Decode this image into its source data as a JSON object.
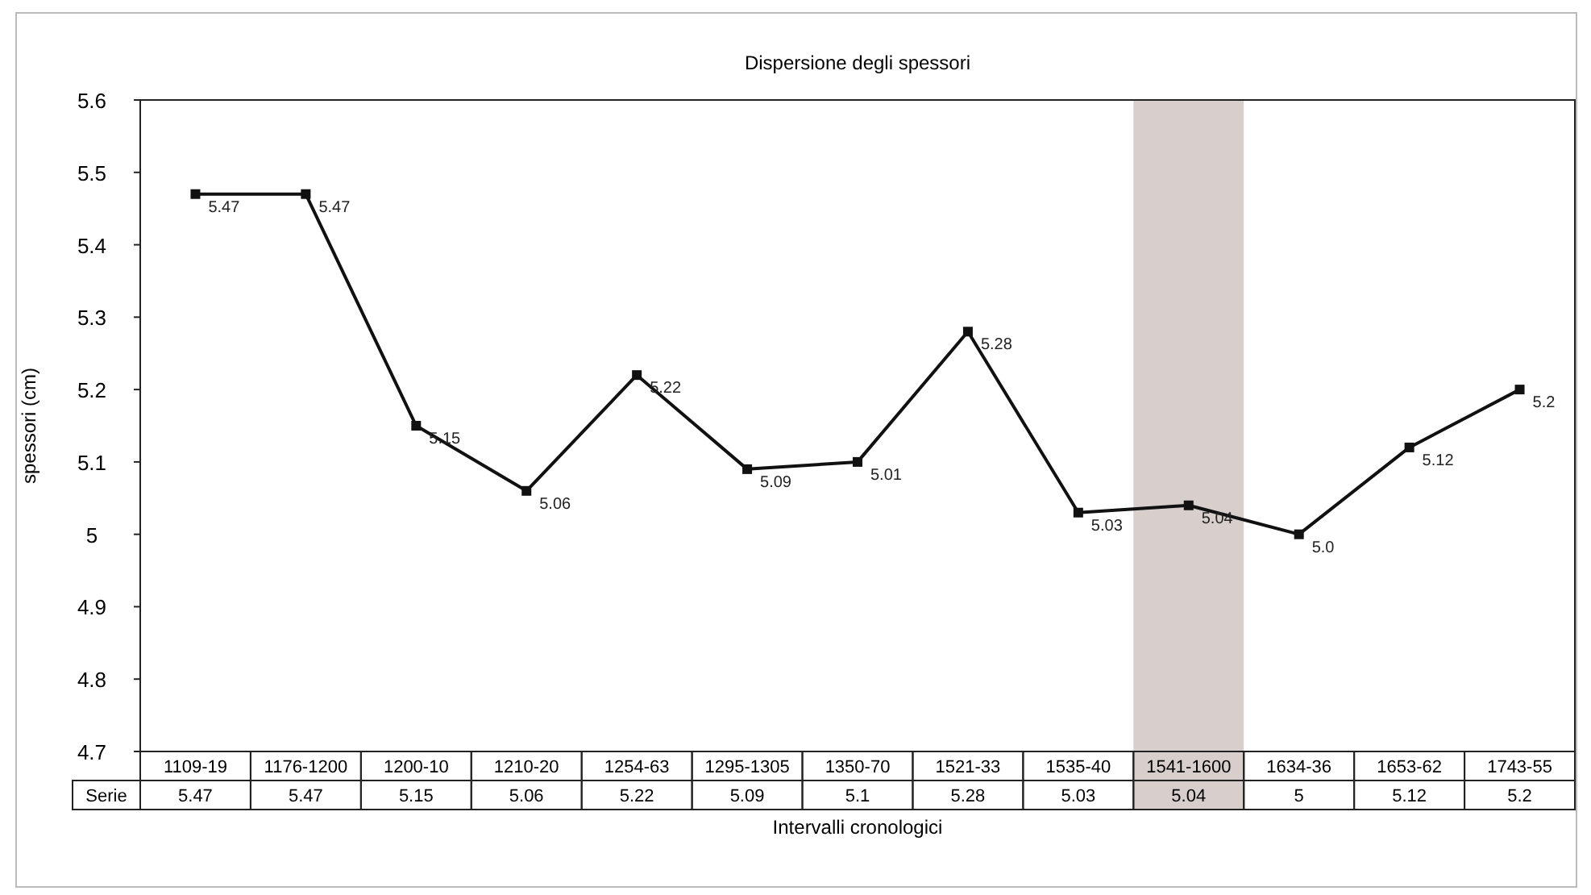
{
  "chart_data": {
    "type": "line",
    "title": "Dispersione degli spessori",
    "xlabel": "Intervalli cronologici",
    "ylabel": "spessori (cm)",
    "categories": [
      "1109-19",
      "1176-1200",
      "1200-10",
      "1210-20",
      "1254-63",
      "1295-1305",
      "1350-70",
      "1521-33",
      "1535-40",
      "1541-1600",
      "1634-36",
      "1653-62",
      "1743-55"
    ],
    "series": [
      {
        "name": "Serie",
        "color": "#111111",
        "values": [
          5.47,
          5.47,
          5.15,
          5.06,
          5.22,
          5.09,
          5.1,
          5.28,
          5.03,
          5.04,
          5,
          5.12,
          5.2
        ]
      }
    ],
    "annotations": [
      {
        "text": "5.47",
        "x": "1109-19",
        "y": 5.47
      },
      {
        "text": "5.47",
        "x": "1176-1200",
        "y": 5.47
      },
      {
        "text": "5.15",
        "x": "1200-10",
        "y": 5.15
      },
      {
        "text": "5.06",
        "x": "1210-20",
        "y": 5.06
      },
      {
        "text": "5.22",
        "x": "1254-63",
        "y": 5.22
      },
      {
        "text": "5.09",
        "x": "1295-1305",
        "y": 5.09
      },
      {
        "text": "5.01",
        "x": "1350-70",
        "y": 5.1
      },
      {
        "text": "5.28",
        "x": "1521-33",
        "y": 5.28
      },
      {
        "text": "5.03",
        "x": "1535-40",
        "y": 5.03
      },
      {
        "text": "5.04",
        "x": "1541-1600",
        "y": 5.04
      },
      {
        "text": "5.0",
        "x": "1634-36",
        "y": 5
      },
      {
        "text": "5.12",
        "x": "1653-62",
        "y": 5.12
      },
      {
        "text": "5.2",
        "x": "1743-55",
        "y": 5.2
      }
    ],
    "ylim": [
      4.7,
      5.6
    ],
    "yticks": [
      4.7,
      4.8,
      4.9,
      {
        "value": 5,
        "label": "5"
      },
      5.1,
      5.2,
      5.3,
      5.4,
      5.5,
      5.6
    ],
    "grid": false,
    "marker": "square",
    "line_style": "solid",
    "data_labels": true,
    "bands": [
      {
        "axis": "x",
        "from": "1541-1600",
        "to": "1541-1600",
        "color": "#d8cfcd"
      }
    ]
  }
}
